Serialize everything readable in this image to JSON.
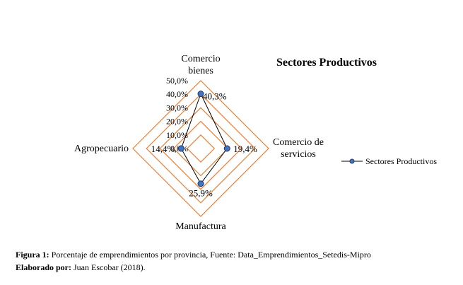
{
  "chart_data": {
    "type": "radar",
    "title": "Sectores Productivos",
    "categories": [
      "Comercio bienes",
      "Comercio de servicios",
      "Manufactura",
      "Agropecuario"
    ],
    "category_label_lines": [
      [
        "Comercio",
        "bienes"
      ],
      [
        "Comercio de",
        "servicios"
      ],
      [
        "Manufactura"
      ],
      [
        "Agropecuario"
      ]
    ],
    "rlim": [
      0,
      50
    ],
    "r_ticks": [
      0,
      10,
      20,
      30,
      40,
      50
    ],
    "r_tick_labels": [
      "0,0%",
      "10,0%",
      "20,0%",
      "30,0%",
      "40,0%",
      "50,0%"
    ],
    "series": [
      {
        "name": "Sectores Productivos",
        "values": [
          40.3,
          19.4,
          25.9,
          14.4
        ],
        "data_labels": [
          "40,3%",
          "19,4%",
          "25,9%",
          "14,4%"
        ],
        "line_color": "#000000",
        "marker_color": "#4472c4"
      }
    ],
    "grid_color": "#ed7d31",
    "grid": true,
    "legend": "right"
  },
  "caption": {
    "figure_label": "Figura 1:",
    "figure_text": "  Porcentaje de emprendimientos por provincia, Fuente: Data_Emprendimientos_Setedis-Mipro",
    "author_label": "Elaborado por:",
    "author_text": " Juan Escobar (2018)."
  }
}
